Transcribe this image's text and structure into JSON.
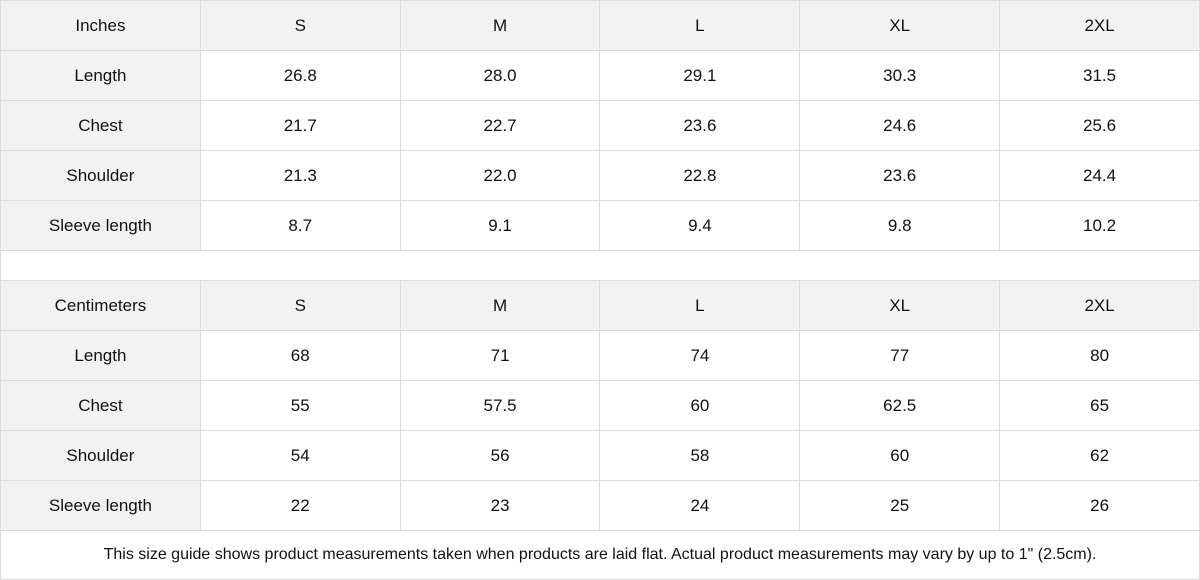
{
  "inches": {
    "header": [
      "Inches",
      "S",
      "M",
      "L",
      "XL",
      "2XL"
    ],
    "rows": [
      [
        "Length",
        "26.8",
        "28.0",
        "29.1",
        "30.3",
        "31.5"
      ],
      [
        "Chest",
        "21.7",
        "22.7",
        "23.6",
        "24.6",
        "25.6"
      ],
      [
        "Shoulder",
        "21.3",
        "22.0",
        "22.8",
        "23.6",
        "24.4"
      ],
      [
        "Sleeve length",
        "8.7",
        "9.1",
        "9.4",
        "9.8",
        "10.2"
      ]
    ]
  },
  "centimeters": {
    "header": [
      "Centimeters",
      "S",
      "M",
      "L",
      "XL",
      "2XL"
    ],
    "rows": [
      [
        "Length",
        "68",
        "71",
        "74",
        "77",
        "80"
      ],
      [
        "Chest",
        "55",
        "57.5",
        "60",
        "62.5",
        "65"
      ],
      [
        "Shoulder",
        "54",
        "56",
        "58",
        "60",
        "62"
      ],
      [
        "Sleeve length",
        "22",
        "23",
        "24",
        "25",
        "26"
      ]
    ]
  },
  "footnote": "This size guide shows product measurements taken when products are laid flat.  Actual product measurements may vary by up to 1\" (2.5cm)."
}
